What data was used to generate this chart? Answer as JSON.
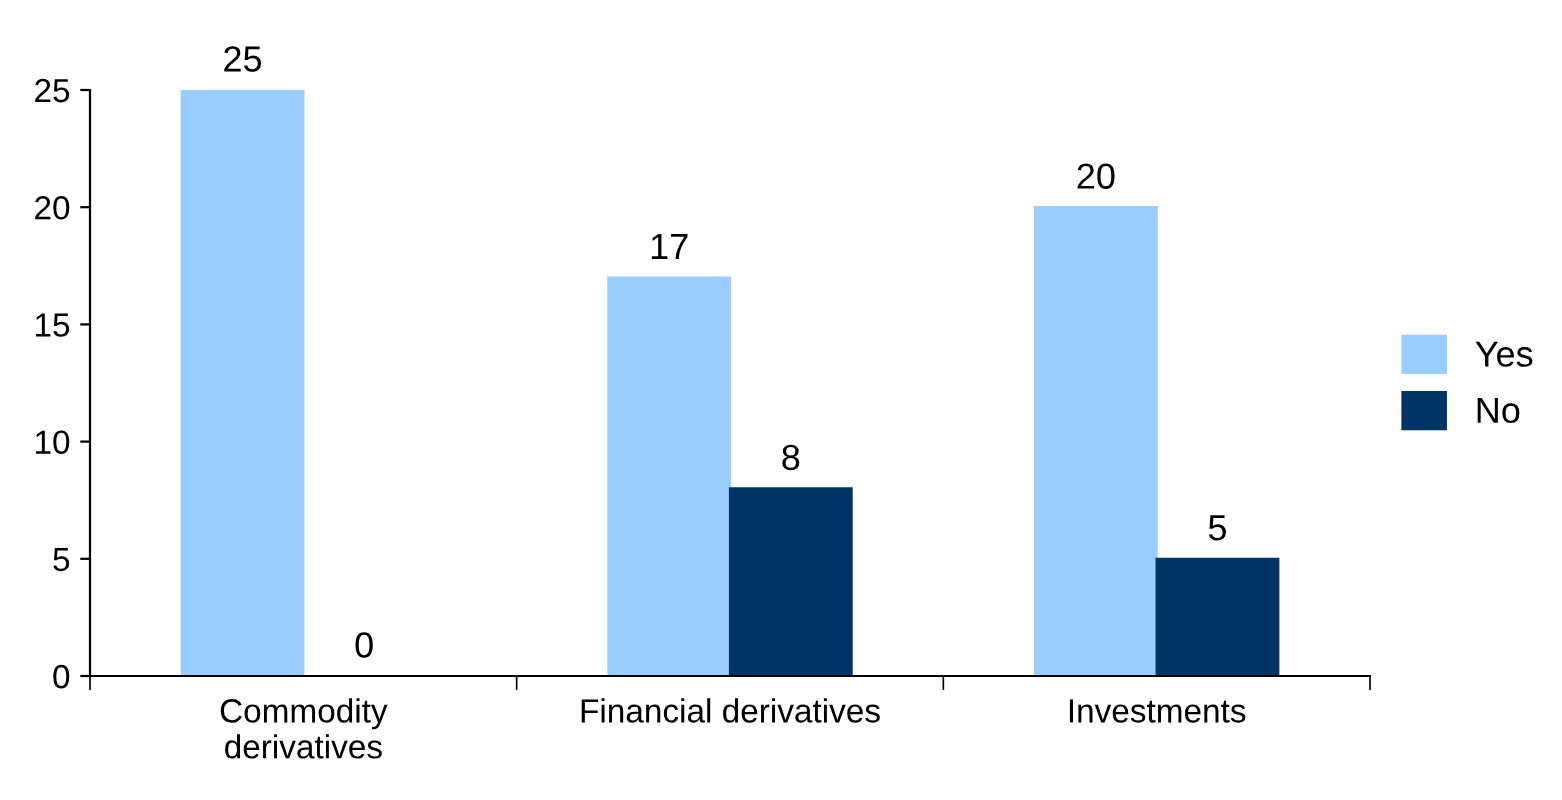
{
  "chart_data": {
    "type": "bar",
    "categories": [
      "Commodity\nderivatives",
      "Financial derivatives",
      "Investments"
    ],
    "series": [
      {
        "name": "Yes",
        "color": "#99ccff",
        "values": [
          25,
          17,
          20
        ]
      },
      {
        "name": "No",
        "color": "#003366",
        "values": [
          0,
          8,
          5
        ]
      }
    ],
    "ylim": [
      0,
      25
    ],
    "yticks": [
      0,
      5,
      10,
      15,
      20,
      25
    ],
    "grid": false,
    "legend": "right",
    "data_labels": true
  }
}
